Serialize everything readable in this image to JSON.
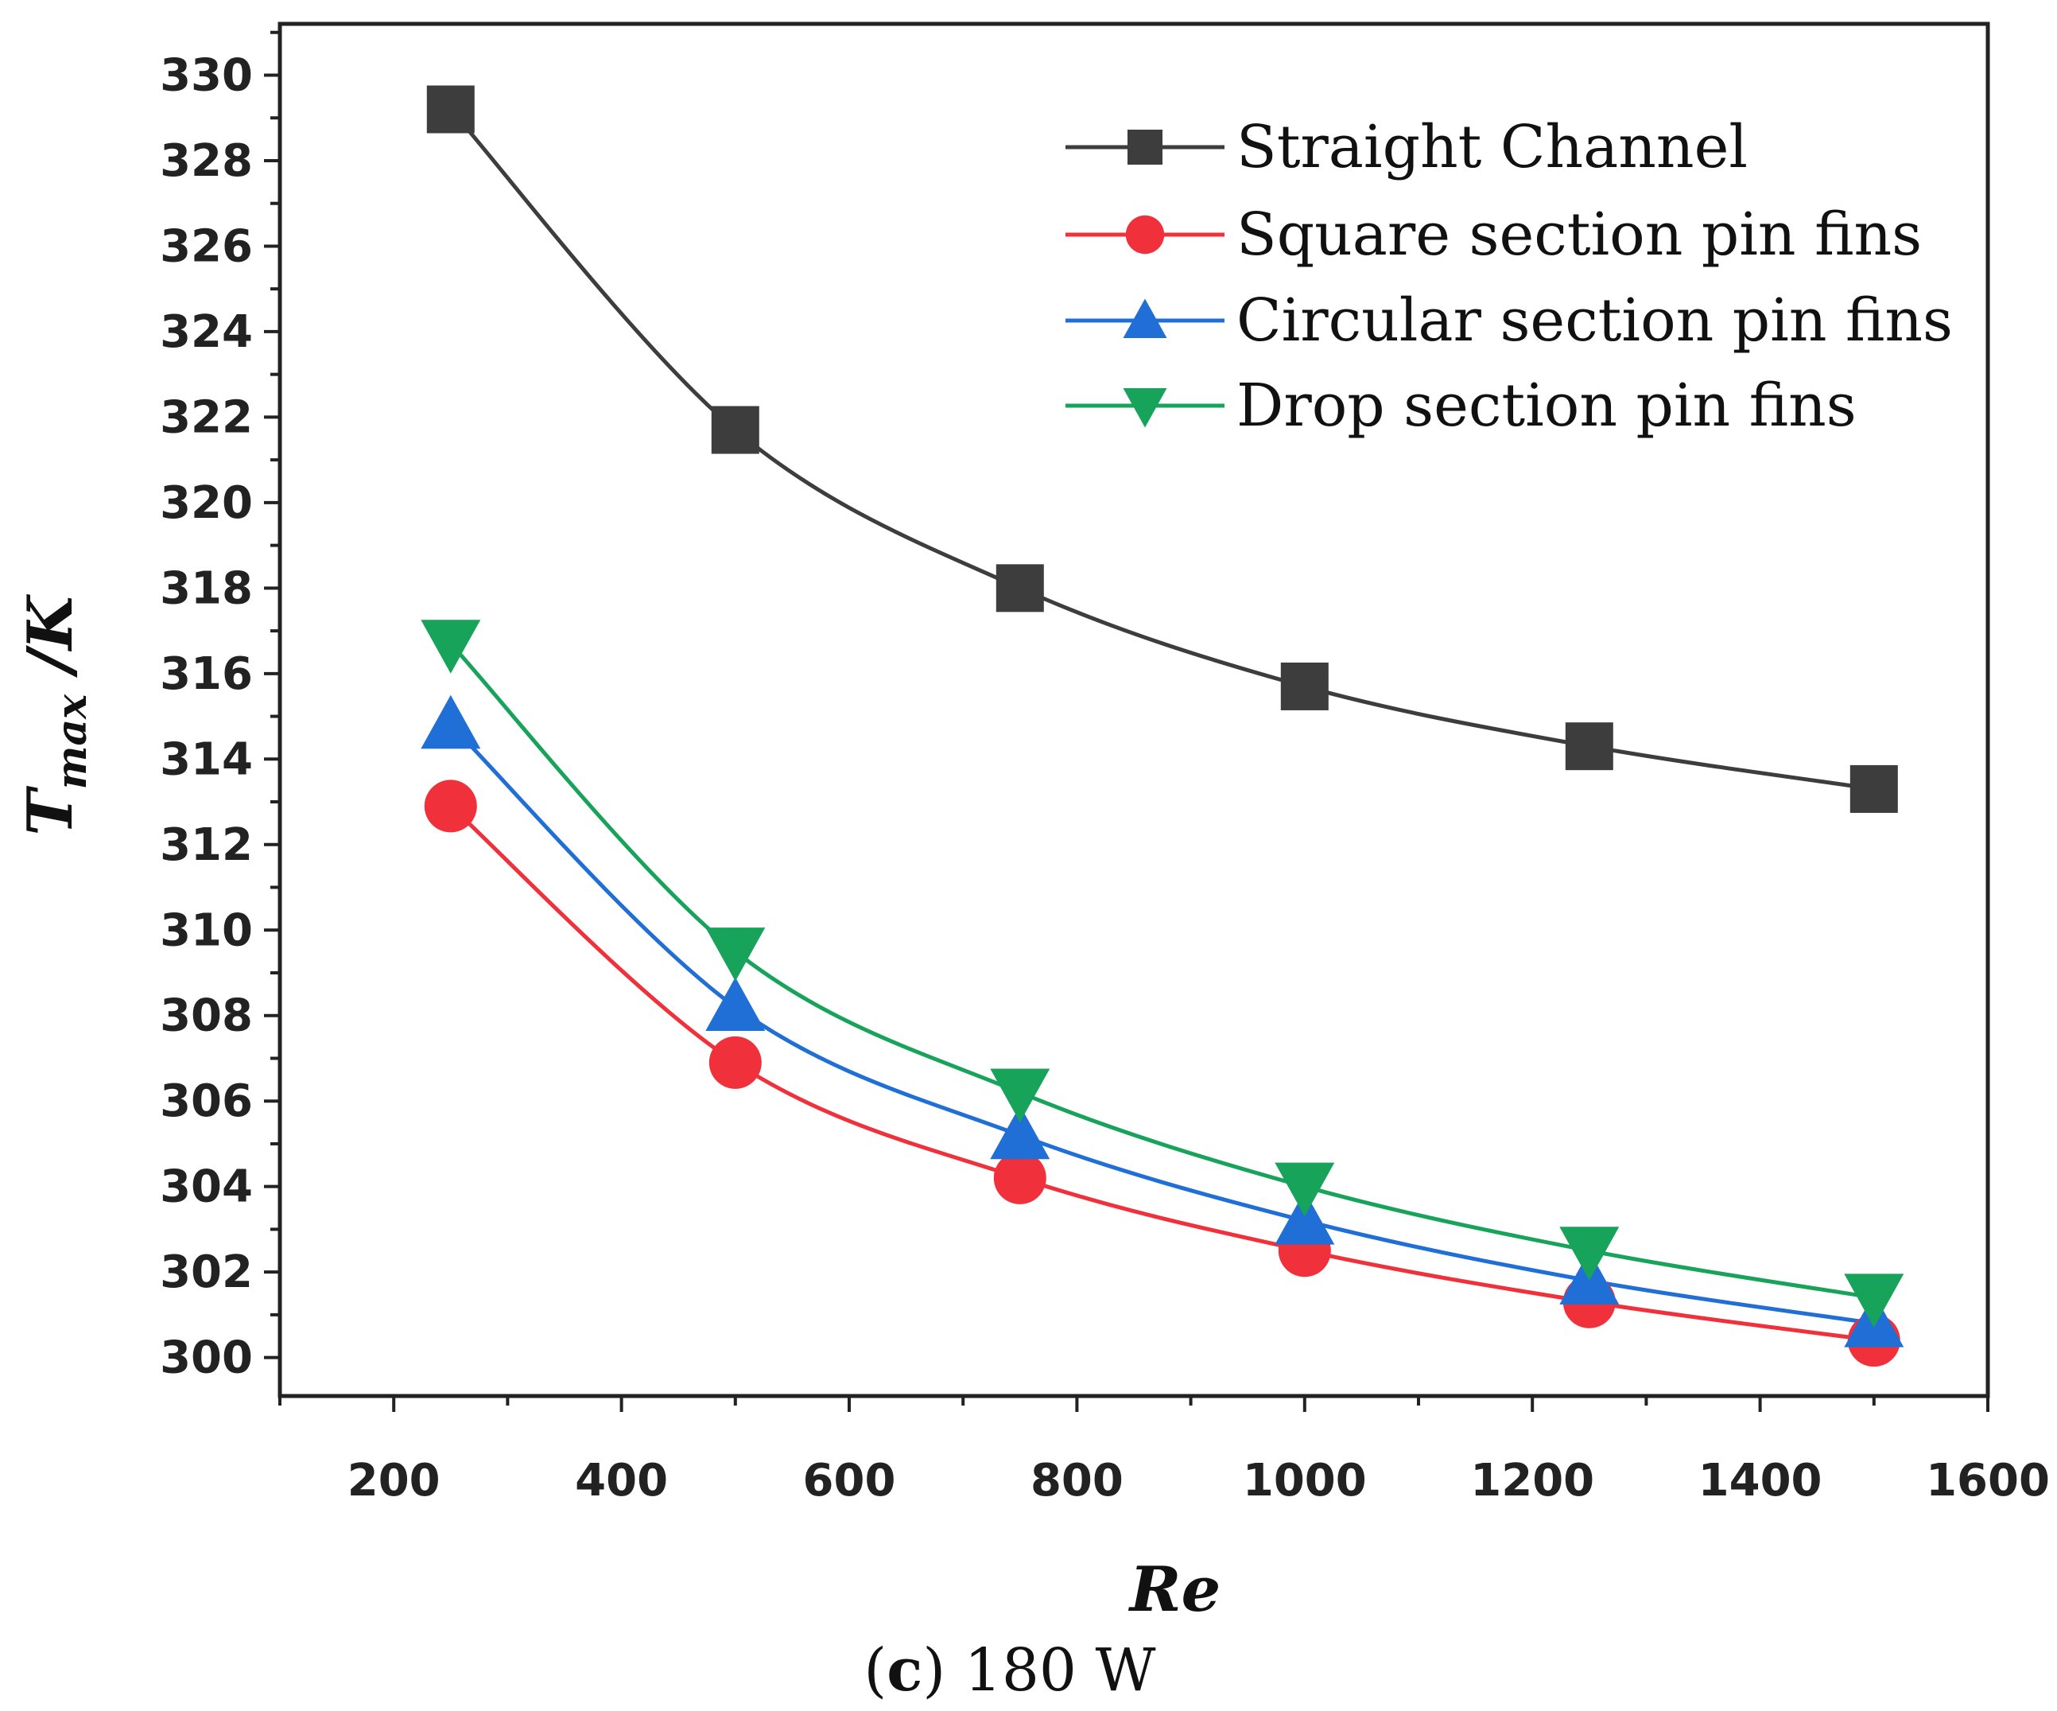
{
  "chart_data": {
    "type": "line",
    "x": [
      250,
      500,
      750,
      1000,
      1250,
      1500
    ],
    "series": [
      {
        "name": "Straight Channel",
        "color": "#3d3d3d",
        "marker": "square",
        "values": [
          329.2,
          321.7,
          318.0,
          315.7,
          314.3,
          313.3
        ]
      },
      {
        "name": "Square section pin fins",
        "color": "#f0303a",
        "marker": "circle",
        "values": [
          312.9,
          306.9,
          304.2,
          302.5,
          301.3,
          300.4
        ]
      },
      {
        "name": "Circular section pin fins",
        "color": "#1f6fd6",
        "marker": "triangle-up",
        "values": [
          314.8,
          308.2,
          305.2,
          303.2,
          301.8,
          300.8
        ]
      },
      {
        "name": "Drop section pin fins",
        "color": "#18a35a",
        "marker": "triangle-down",
        "values": [
          316.7,
          309.5,
          306.2,
          304.0,
          302.5,
          301.4
        ]
      }
    ],
    "xlim": [
      100,
      1600
    ],
    "ylim": [
      299.1,
      331.2
    ],
    "xticks": [
      200,
      400,
      600,
      800,
      1000,
      1200,
      1400,
      1600
    ],
    "yticks": [
      300,
      302,
      304,
      306,
      308,
      310,
      312,
      314,
      316,
      318,
      320,
      322,
      324,
      326,
      328,
      330
    ],
    "xlabel": "Re",
    "ylabel_main": "T",
    "ylabel_sub": "max",
    "ylabel_unit": " /K",
    "legend_position": "top-right",
    "grid": false
  },
  "caption": {
    "paren_open": "(",
    "letter": "c",
    "paren_close": ")",
    "text": " 180 W"
  }
}
